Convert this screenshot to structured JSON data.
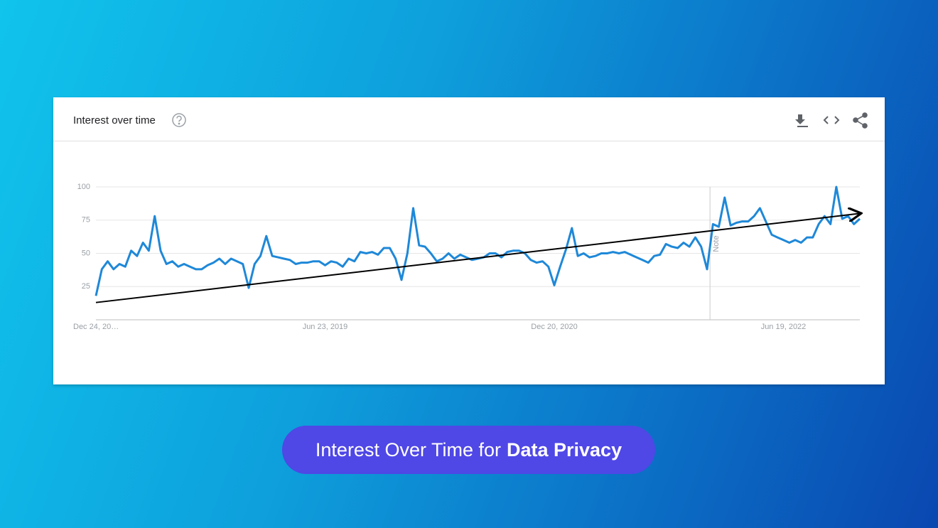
{
  "chart_data": {
    "type": "line",
    "title": "Interest over time",
    "caption": {
      "lead": "Interest Over Time for",
      "emphasis": "Data Privacy"
    },
    "categories": [
      "Dec 24, 20…",
      null,
      null,
      null,
      null,
      null,
      null,
      null,
      null,
      null,
      null,
      null,
      null,
      null,
      null,
      null,
      null,
      null,
      null,
      null,
      null,
      null,
      null,
      null,
      null,
      null,
      null,
      null,
      null,
      null,
      null,
      null,
      null,
      null,
      null,
      null,
      null,
      null,
      null,
      "Jun 23, 2019",
      null,
      null,
      null,
      null,
      null,
      null,
      null,
      null,
      null,
      null,
      null,
      null,
      null,
      null,
      null,
      null,
      null,
      null,
      null,
      null,
      null,
      null,
      null,
      null,
      null,
      null,
      null,
      null,
      null,
      null,
      null,
      null,
      null,
      null,
      null,
      null,
      null,
      null,
      "Dec 20, 2020",
      null,
      null,
      null,
      null,
      null,
      null,
      null,
      null,
      null,
      null,
      null,
      null,
      null,
      null,
      null,
      null,
      null,
      null,
      null,
      null,
      null,
      null,
      null,
      null,
      null,
      null,
      null,
      null,
      null,
      null,
      null,
      null,
      null,
      null,
      null,
      null,
      null,
      null,
      "Jun 19, 2022",
      null,
      null,
      null,
      null,
      null,
      null,
      null,
      null,
      null,
      null,
      null,
      null,
      null
    ],
    "series": [
      {
        "name": "Data Privacy",
        "color": "#1e88d8",
        "values": [
          18,
          38,
          44,
          38,
          42,
          40,
          52,
          48,
          58,
          52,
          78,
          52,
          42,
          44,
          40,
          42,
          40,
          38,
          38,
          41,
          43,
          46,
          42,
          46,
          44,
          42,
          24,
          42,
          48,
          63,
          48,
          47,
          46,
          45,
          42,
          43,
          43,
          44,
          44,
          41,
          44,
          43,
          40,
          46,
          44,
          51,
          50,
          51,
          49,
          54,
          54,
          46,
          30,
          50,
          84,
          56,
          55,
          50,
          44,
          46,
          50,
          46,
          49,
          47,
          45,
          46,
          47,
          50,
          50,
          47,
          51,
          52,
          52,
          50,
          45,
          43,
          44,
          40,
          26,
          40,
          53,
          69,
          48,
          50,
          47,
          48,
          50,
          50,
          51,
          50,
          51,
          49,
          47,
          45,
          43,
          48,
          49,
          57,
          55,
          54,
          58,
          55,
          62,
          55,
          38,
          72,
          70,
          92,
          71,
          73,
          74,
          74,
          78,
          84,
          74,
          64,
          62,
          60,
          58,
          60,
          58,
          62,
          62,
          72,
          78,
          72,
          100,
          76,
          78,
          72,
          76
        ]
      }
    ],
    "ylim": [
      0,
      100
    ],
    "yticks": [
      25,
      50,
      75,
      100
    ],
    "grid": true,
    "trend": {
      "start": 13,
      "end": 80,
      "color": "#000000"
    },
    "note": {
      "label": "Note",
      "x": 104.5
    }
  }
}
